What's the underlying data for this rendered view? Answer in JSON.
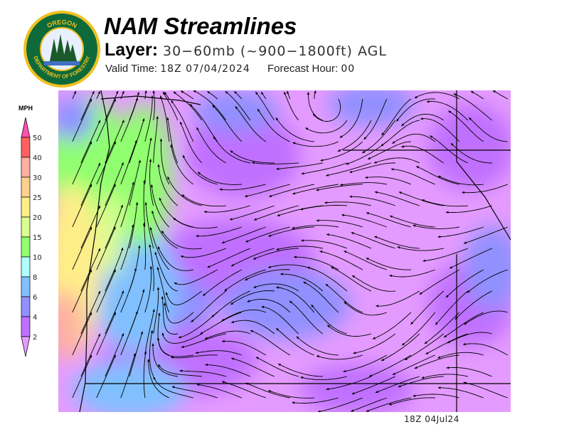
{
  "logo": {
    "top_text": "OREGON",
    "bottom_text": "DEPARTMENT OF FORESTRY"
  },
  "header": {
    "title": "NAM Streamlines",
    "layer_label": "Layer:",
    "layer_value": "30−60mb (~900−1800ft) AGL",
    "valid_time_label": "Valid Time:",
    "valid_time_value": "18Z 07/04/2024",
    "forecast_hour_label": "Forecast Hour:",
    "forecast_hour_value": "00"
  },
  "legend": {
    "unit": "MPH",
    "bins": [
      {
        "label": "50",
        "color": "#ff6060"
      },
      {
        "label": "40",
        "color": "#ffb0a0"
      },
      {
        "label": "30",
        "color": "#ffd090"
      },
      {
        "label": "25",
        "color": "#ffee88"
      },
      {
        "label": "20",
        "color": "#d8ff90"
      },
      {
        "label": "15",
        "color": "#90ff70"
      },
      {
        "label": "10",
        "color": "#b0ffff"
      },
      {
        "label": "8",
        "color": "#80c0ff"
      },
      {
        "label": "6",
        "color": "#9090ff"
      },
      {
        "label": "4",
        "color": "#c070ff"
      },
      {
        "label": "2",
        "color": ""
      }
    ],
    "top_arrow_color": "#ff50b0",
    "bottom_arrow_color": "#e49bff"
  },
  "map": {
    "timestamp": "18Z 04Jul24"
  }
}
